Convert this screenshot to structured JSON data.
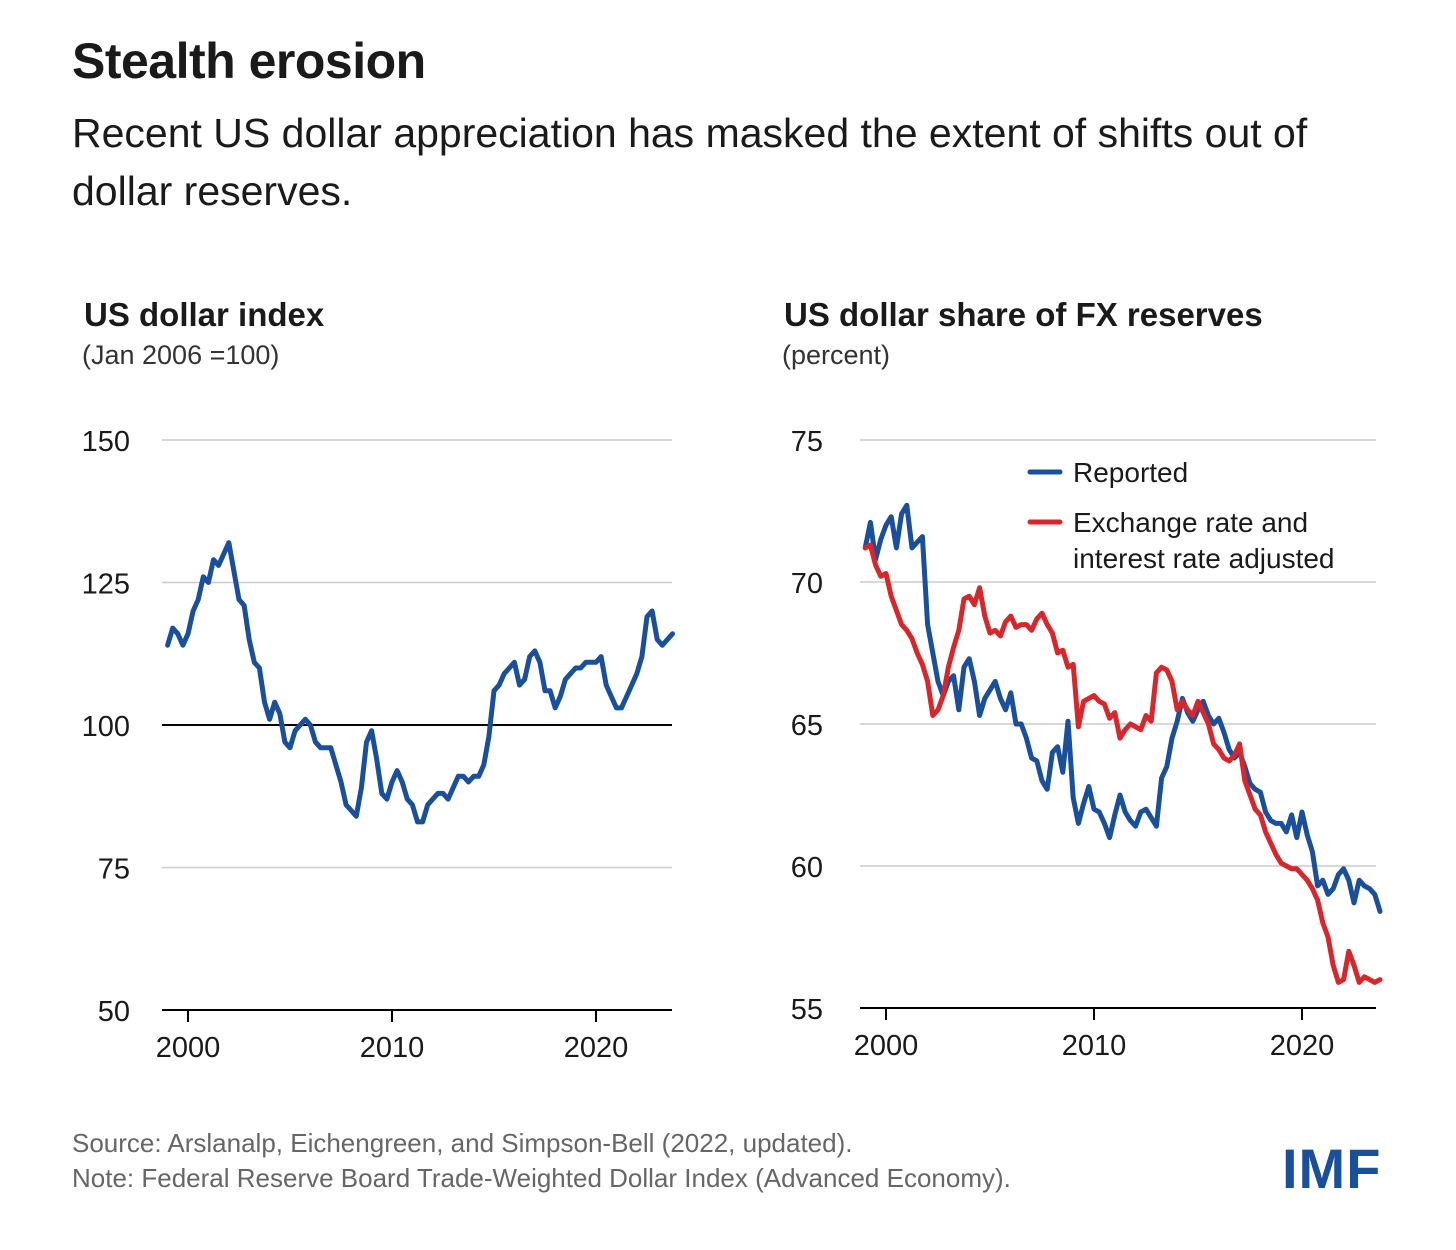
{
  "header": {
    "title": "Stealth erosion",
    "subtitle": "Recent US dollar appreciation has masked the extent of shifts out of dollar reserves."
  },
  "footer": {
    "source": "Source: Arslanalp, Eichengreen, and Simpson-Bell (2022, updated).",
    "note": "Note: Federal Reserve Board Trade-Weighted Dollar Index (Advanced Economy).",
    "logo": "IMF"
  },
  "colors": {
    "blue": "#1a4f9c",
    "red": "#d9262b",
    "grid": "#cccccc"
  },
  "chart_data": [
    {
      "type": "line",
      "title": "US dollar index",
      "subtitle": "(Jan 2006 =100)",
      "xlim": [
        1999,
        2023.75
      ],
      "ylim": [
        50,
        150
      ],
      "yticks": [
        50,
        75,
        100,
        125,
        150
      ],
      "xticks": [
        2000,
        2010,
        2020
      ],
      "reference_line": 100,
      "grid": true,
      "series": [
        {
          "color": "#1a4f9c",
          "x": [
            1999.0,
            1999.25,
            1999.5,
            1999.75,
            2000.0,
            2000.25,
            2000.5,
            2000.75,
            2001.0,
            2001.25,
            2001.5,
            2001.75,
            2002.0,
            2002.25,
            2002.5,
            2002.75,
            2003.0,
            2003.25,
            2003.5,
            2003.75,
            2004.0,
            2004.25,
            2004.5,
            2004.75,
            2005.0,
            2005.25,
            2005.5,
            2005.75,
            2006.0,
            2006.25,
            2006.5,
            2006.75,
            2007.0,
            2007.25,
            2007.5,
            2007.75,
            2008.0,
            2008.25,
            2008.5,
            2008.75,
            2009.0,
            2009.25,
            2009.5,
            2009.75,
            2010.0,
            2010.25,
            2010.5,
            2010.75,
            2011.0,
            2011.25,
            2011.5,
            2011.75,
            2012.0,
            2012.25,
            2012.5,
            2012.75,
            2013.0,
            2013.25,
            2013.5,
            2013.75,
            2014.0,
            2014.25,
            2014.5,
            2014.75,
            2015.0,
            2015.25,
            2015.5,
            2015.75,
            2016.0,
            2016.25,
            2016.5,
            2016.75,
            2017.0,
            2017.25,
            2017.5,
            2017.75,
            2018.0,
            2018.25,
            2018.5,
            2018.75,
            2019.0,
            2019.25,
            2019.5,
            2019.75,
            2020.0,
            2020.25,
            2020.5,
            2020.75,
            2021.0,
            2021.25,
            2021.5,
            2021.75,
            2022.0,
            2022.25,
            2022.5,
            2022.75,
            2023.0,
            2023.25,
            2023.5,
            2023.75
          ],
          "values": [
            114,
            117,
            116,
            114,
            116,
            120,
            122,
            126,
            125,
            129,
            128,
            130,
            132,
            127,
            122,
            121,
            115,
            111,
            110,
            104,
            101,
            104,
            102,
            97,
            96,
            99,
            100,
            101,
            100,
            97,
            96,
            96,
            96,
            93,
            90,
            86,
            85,
            84,
            89,
            97,
            99,
            94,
            88,
            87,
            90,
            92,
            90,
            87,
            86,
            83,
            83,
            86,
            87,
            88,
            88,
            87,
            89,
            91,
            91,
            90,
            91,
            91,
            93,
            98,
            106,
            107,
            109,
            110,
            111,
            107,
            108,
            112,
            113,
            111,
            106,
            106,
            103,
            105,
            108,
            109,
            110,
            110,
            111,
            111,
            111,
            112,
            107,
            105,
            103,
            103,
            105,
            107,
            109,
            112,
            119,
            120,
            115,
            114,
            115,
            116
          ]
        }
      ]
    },
    {
      "type": "line",
      "title": "US dollar share of FX reserves",
      "subtitle": "(percent)",
      "xlim": [
        1999,
        2023.75
      ],
      "ylim": [
        55,
        75
      ],
      "yticks": [
        55,
        60,
        65,
        70,
        75
      ],
      "xticks": [
        2000,
        2010,
        2020
      ],
      "grid": true,
      "legend": "top-right",
      "series": [
        {
          "name": "Reported",
          "color": "#1a4f9c",
          "x": [
            1999.0,
            1999.25,
            1999.5,
            1999.75,
            2000.0,
            2000.25,
            2000.5,
            2000.75,
            2001.0,
            2001.25,
            2001.5,
            2001.75,
            2002.0,
            2002.25,
            2002.5,
            2002.75,
            2003.0,
            2003.25,
            2003.5,
            2003.75,
            2004.0,
            2004.25,
            2004.5,
            2004.75,
            2005.0,
            2005.25,
            2005.5,
            2005.75,
            2006.0,
            2006.25,
            2006.5,
            2006.75,
            2007.0,
            2007.25,
            2007.5,
            2007.75,
            2008.0,
            2008.25,
            2008.5,
            2008.75,
            2009.0,
            2009.25,
            2009.5,
            2009.75,
            2010.0,
            2010.25,
            2010.5,
            2010.75,
            2011.0,
            2011.25,
            2011.5,
            2011.75,
            2012.0,
            2012.25,
            2012.5,
            2012.75,
            2013.0,
            2013.25,
            2013.5,
            2013.75,
            2014.0,
            2014.25,
            2014.5,
            2014.75,
            2015.0,
            2015.25,
            2015.5,
            2015.75,
            2016.0,
            2016.25,
            2016.5,
            2016.75,
            2017.0,
            2017.25,
            2017.5,
            2017.75,
            2018.0,
            2018.25,
            2018.5,
            2018.75,
            2019.0,
            2019.25,
            2019.5,
            2019.75,
            2020.0,
            2020.25,
            2020.5,
            2020.75,
            2021.0,
            2021.25,
            2021.5,
            2021.75,
            2022.0,
            2022.25,
            2022.5,
            2022.75,
            2023.0,
            2023.25,
            2023.5,
            2023.75
          ],
          "values": [
            71.2,
            72.1,
            70.8,
            71.5,
            72.0,
            72.3,
            71.2,
            72.4,
            72.7,
            71.2,
            71.4,
            71.6,
            68.5,
            67.5,
            66.5,
            66.0,
            66.5,
            66.7,
            65.5,
            67.0,
            67.3,
            66.5,
            65.3,
            65.9,
            66.2,
            66.5,
            65.9,
            65.5,
            66.1,
            65.0,
            65.0,
            64.5,
            63.8,
            63.7,
            63.0,
            62.7,
            64.0,
            64.2,
            63.3,
            65.1,
            62.4,
            61.5,
            62.2,
            62.8,
            62.0,
            61.9,
            61.5,
            61.0,
            61.8,
            62.5,
            61.9,
            61.6,
            61.4,
            61.9,
            62.0,
            61.7,
            61.4,
            63.1,
            63.5,
            64.5,
            65.1,
            65.9,
            65.4,
            65.1,
            65.5,
            65.8,
            65.3,
            65.0,
            65.2,
            64.7,
            64.1,
            63.8,
            64.0,
            63.5,
            62.9,
            62.7,
            62.6,
            61.9,
            61.6,
            61.5,
            61.5,
            61.2,
            61.8,
            61.0,
            61.9,
            61.1,
            60.5,
            59.3,
            59.5,
            59.0,
            59.2,
            59.7,
            59.9,
            59.5,
            58.7,
            59.5,
            59.3,
            59.2,
            59.0,
            58.4
          ]
        },
        {
          "name": "Exchange rate and interest rate adjusted",
          "color": "#d9262b",
          "x": [
            1999.0,
            1999.25,
            1999.5,
            1999.75,
            2000.0,
            2000.25,
            2000.5,
            2000.75,
            2001.0,
            2001.25,
            2001.5,
            2001.75,
            2002.0,
            2002.25,
            2002.5,
            2002.75,
            2003.0,
            2003.25,
            2003.5,
            2003.75,
            2004.0,
            2004.25,
            2004.5,
            2004.75,
            2005.0,
            2005.25,
            2005.5,
            2005.75,
            2006.0,
            2006.25,
            2006.5,
            2006.75,
            2007.0,
            2007.25,
            2007.5,
            2007.75,
            2008.0,
            2008.25,
            2008.5,
            2008.75,
            2009.0,
            2009.25,
            2009.5,
            2009.75,
            2010.0,
            2010.25,
            2010.5,
            2010.75,
            2011.0,
            2011.25,
            2011.5,
            2011.75,
            2012.0,
            2012.25,
            2012.5,
            2012.75,
            2013.0,
            2013.25,
            2013.5,
            2013.75,
            2014.0,
            2014.25,
            2014.5,
            2014.75,
            2015.0,
            2015.25,
            2015.5,
            2015.75,
            2016.0,
            2016.25,
            2016.5,
            2016.75,
            2017.0,
            2017.25,
            2017.5,
            2017.75,
            2018.0,
            2018.25,
            2018.5,
            2018.75,
            2019.0,
            2019.25,
            2019.5,
            2019.75,
            2020.0,
            2020.25,
            2020.5,
            2020.75,
            2021.0,
            2021.25,
            2021.5,
            2021.75,
            2022.0,
            2022.25,
            2022.5,
            2022.75,
            2023.0,
            2023.25,
            2023.5,
            2023.75
          ],
          "values": [
            71.2,
            71.3,
            70.6,
            70.2,
            70.3,
            69.5,
            69.0,
            68.5,
            68.3,
            68.0,
            67.5,
            67.1,
            66.5,
            65.3,
            65.5,
            66.0,
            67.0,
            67.7,
            68.3,
            69.4,
            69.5,
            69.2,
            69.8,
            68.8,
            68.2,
            68.3,
            68.1,
            68.6,
            68.8,
            68.4,
            68.5,
            68.5,
            68.3,
            68.7,
            68.9,
            68.5,
            68.2,
            67.5,
            67.6,
            67.0,
            67.1,
            64.9,
            65.8,
            65.9,
            66.0,
            65.8,
            65.7,
            65.2,
            65.4,
            64.5,
            64.8,
            65.0,
            64.9,
            64.8,
            65.3,
            65.1,
            66.8,
            67.0,
            66.9,
            66.5,
            65.5,
            65.8,
            65.5,
            65.3,
            65.8,
            65.4,
            65.0,
            64.3,
            64.1,
            63.8,
            63.7,
            63.9,
            64.3,
            63.0,
            62.5,
            62.0,
            61.8,
            61.2,
            60.8,
            60.4,
            60.1,
            60.0,
            59.9,
            59.9,
            59.7,
            59.5,
            59.2,
            58.8,
            58.0,
            57.5,
            56.5,
            55.9,
            56.0,
            57.0,
            56.5,
            55.9,
            56.1,
            56.0,
            55.9,
            56.0
          ]
        }
      ]
    }
  ]
}
